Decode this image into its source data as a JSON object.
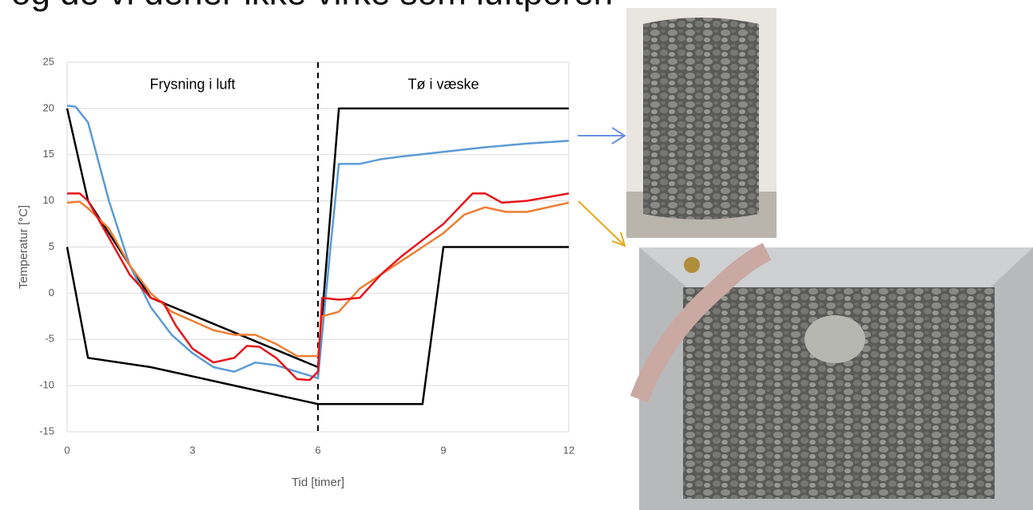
{
  "slide_title": "og de vi dener ikke virke som luftporen",
  "chart_data": {
    "type": "line",
    "ylabel": "Temperatur [°C]",
    "xlabel": "Tid [timer]",
    "annotations": [
      {
        "text": "Frysning i luft",
        "x": 3,
        "y": 22.5
      },
      {
        "text": "Tø i væske",
        "x": 9,
        "y": 22.5
      }
    ],
    "vline": 6,
    "xlim": [
      0,
      12
    ],
    "xticks": [
      0,
      3,
      6,
      9,
      12
    ],
    "ylim": [
      -15,
      25
    ],
    "yticks": [
      -15,
      -10,
      -5,
      0,
      5,
      10,
      15,
      20,
      25
    ],
    "grid": true,
    "series": [
      {
        "color": "#000000",
        "x": [
          0,
          0.5,
          2,
          6,
          6.5,
          12
        ],
        "values": [
          20,
          10,
          -0.5,
          -8,
          20,
          20
        ]
      },
      {
        "color": "#000000",
        "x": [
          0,
          0.5,
          2,
          6,
          8.5,
          9,
          12
        ],
        "values": [
          5,
          -7,
          -8,
          -12,
          -12,
          5,
          5
        ]
      },
      {
        "color": "#5b9bd5",
        "x": [
          0,
          0.2,
          0.5,
          1,
          1.5,
          2,
          2.5,
          3,
          3.5,
          4,
          4.5,
          5,
          5.5,
          6,
          6.3,
          6.5,
          7,
          7.5,
          8,
          9,
          10,
          11,
          12
        ],
        "values": [
          20.3,
          20.2,
          18.5,
          10,
          3,
          -1.5,
          -4.5,
          -6.5,
          -8,
          -8.5,
          -7.5,
          -7.8,
          -8.5,
          -9.2,
          5,
          14,
          14,
          14.5,
          14.8,
          15.3,
          15.8,
          16.2,
          16.5
        ]
      },
      {
        "color": "#ed7d31",
        "x": [
          0,
          0.3,
          0.5,
          1,
          1.5,
          2,
          2.5,
          3,
          3.5,
          4,
          4.5,
          5,
          5.5,
          6,
          6.1,
          6.5,
          7,
          8,
          9,
          9.5,
          10,
          10.5,
          11,
          12
        ],
        "values": [
          9.8,
          9.9,
          9.2,
          7,
          3,
          0,
          -2,
          -3,
          -4,
          -4.5,
          -4.5,
          -5.5,
          -6.8,
          -6.8,
          -2.5,
          -2,
          0.5,
          3.5,
          6.5,
          8.5,
          9.3,
          8.8,
          8.8,
          9.8
        ]
      },
      {
        "color": "#e8141b",
        "x": [
          0,
          0.3,
          0.5,
          1,
          1.5,
          2,
          2.3,
          2.6,
          3,
          3.5,
          4,
          4.3,
          4.6,
          5,
          5.5,
          5.8,
          6,
          6.1,
          6.5,
          7,
          7.5,
          8,
          9,
          9.7,
          10,
          10.4,
          11,
          12
        ],
        "values": [
          10.8,
          10.8,
          10,
          6,
          2,
          -0.5,
          -1,
          -3.5,
          -6,
          -7.5,
          -7,
          -5.7,
          -5.8,
          -7,
          -9.3,
          -9.4,
          -8.5,
          -0.5,
          -0.7,
          -0.5,
          2,
          4,
          7.5,
          10.8,
          10.8,
          9.8,
          10,
          10.8
        ]
      }
    ]
  }
}
